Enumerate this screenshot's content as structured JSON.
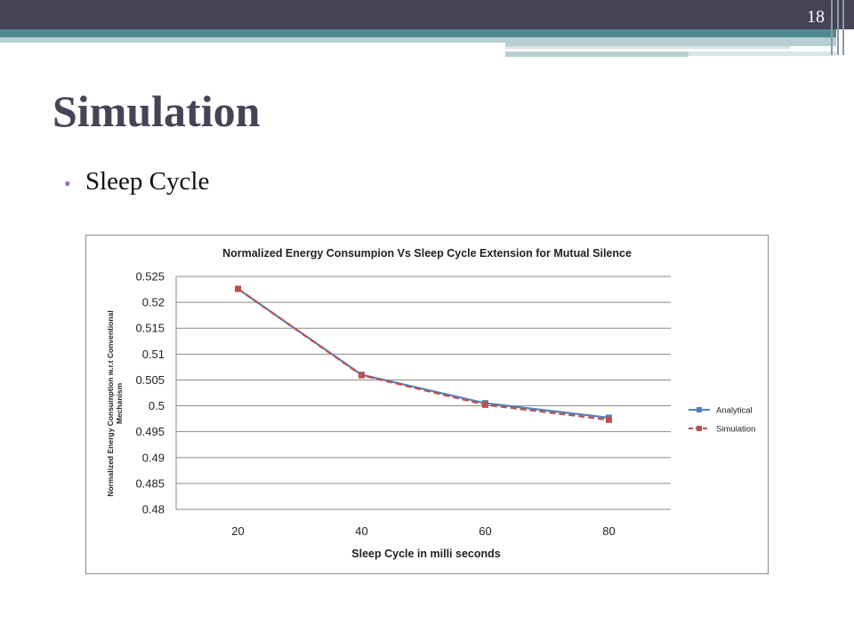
{
  "slide": {
    "number": "18",
    "title": "Simulation",
    "bullet": "Sleep Cycle",
    "colors": {
      "header": "#454356",
      "teal": "#4f8a8f",
      "bullet": "#9f6fae"
    }
  },
  "chart_data": {
    "type": "line",
    "title": "Normalized Energy Consumpion Vs Sleep Cycle Extension for Mutual Silence",
    "xlabel": "Sleep Cycle in milli seconds",
    "ylabel": "Normalized Energy Consumption w.r.t Conventional Mechanism",
    "categories": [
      "20",
      "40",
      "60",
      "80"
    ],
    "ylim": [
      0.48,
      0.525
    ],
    "yticks": [
      "0.525",
      "0.52",
      "0.515",
      "0.51",
      "0.505",
      "0.5",
      "0.495",
      "0.49",
      "0.485",
      "0.48"
    ],
    "grid": true,
    "legend_position": "right",
    "series": [
      {
        "name": "Analytical",
        "values": [
          0.5226,
          0.506,
          0.5005,
          0.4977
        ],
        "color": "#4f81bd",
        "marker": "square",
        "dash": "solid"
      },
      {
        "name": "Simulation",
        "values": [
          0.5226,
          0.5059,
          0.5002,
          0.4973
        ],
        "color": "#c0504d",
        "marker": "square",
        "dash": "dashed"
      }
    ]
  }
}
